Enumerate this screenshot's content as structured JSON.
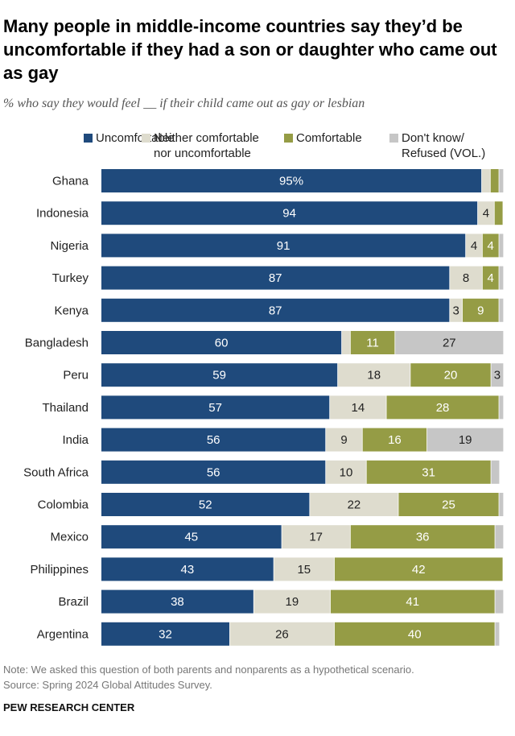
{
  "title": "Many people in middle-income countries say they’d be uncomfortable if they had a son or daughter who came out as gay",
  "subtitle": "% who say they would feel __ if their child came out as gay or lesbian",
  "note": "Note: We asked this question of both parents and nonparents as a hypothetical scenario.",
  "source": "Source: Spring 2024 Global Attitudes Survey.",
  "org": "PEW RESEARCH CENTER",
  "chart_data": {
    "type": "bar",
    "orientation": "horizontal-stacked",
    "xlim": [
      0,
      100
    ],
    "categories": [
      "Ghana",
      "Indonesia",
      "Nigeria",
      "Turkey",
      "Kenya",
      "Bangladesh",
      "Peru",
      "Thailand",
      "India",
      "South Africa",
      "Colombia",
      "Mexico",
      "Philippines",
      "Brazil",
      "Argentina"
    ],
    "series": [
      {
        "name": "Uncomfortable",
        "color": "#1f4a7c",
        "label_color": "#ffffff",
        "values": [
          95,
          94,
          91,
          87,
          87,
          60,
          59,
          57,
          56,
          56,
          52,
          45,
          43,
          38,
          32
        ],
        "labels": [
          "95%",
          "94",
          "91",
          "87",
          "87",
          "60",
          "59",
          "57",
          "56",
          "56",
          "52",
          "45",
          "43",
          "38",
          "32"
        ]
      },
      {
        "name": "Neither comfortable nor uncomfortable",
        "color": "#dedcce",
        "label_color": "#222222",
        "values": [
          2,
          4,
          4,
          8,
          3,
          2,
          18,
          14,
          9,
          10,
          22,
          17,
          15,
          19,
          26
        ],
        "labels": [
          "",
          "4",
          "4",
          "8",
          "3",
          "",
          "18",
          "14",
          "9",
          "10",
          "22",
          "17",
          "15",
          "19",
          "26"
        ]
      },
      {
        "name": "Comfortable",
        "color": "#959c45",
        "label_color": "#ffffff",
        "values": [
          2,
          2,
          4,
          4,
          9,
          11,
          20,
          28,
          16,
          31,
          25,
          36,
          42,
          41,
          40
        ],
        "labels": [
          "",
          "",
          "4",
          "4",
          "9",
          "11",
          "20",
          "28",
          "16",
          "31",
          "25",
          "36",
          "42",
          "41",
          "40"
        ]
      },
      {
        "name": "Don't know/ Refused (VOL.)",
        "color": "#c6c6c6",
        "label_color": "#222222",
        "values": [
          1,
          0,
          1,
          1,
          1,
          27,
          3,
          1,
          19,
          2,
          1,
          2,
          0,
          2,
          1
        ],
        "labels": [
          "",
          "",
          "",
          "",
          "",
          "27",
          "3",
          "",
          "19",
          "",
          "",
          "",
          "",
          "",
          ""
        ]
      }
    ],
    "legend": {
      "placement": "top",
      "lines": [
        [
          "Uncomfortable"
        ],
        [
          "Neither comfortable",
          "nor uncomfortable"
        ],
        [
          "Comfortable"
        ],
        [
          "Don't know/",
          "Refused (VOL.)"
        ]
      ]
    }
  }
}
